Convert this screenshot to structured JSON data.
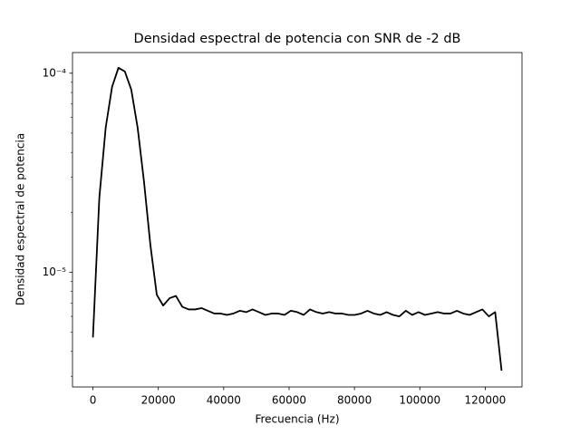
{
  "chart_data": {
    "type": "line",
    "title": "Densidad espectral de potencia con SNR de -2 dB",
    "xlabel": "Frecuencia (Hz)",
    "ylabel": "Densidad espectral de potencia",
    "yscale": "log",
    "color": "#000000",
    "xlim": [
      -6250,
      131250
    ],
    "xticks": [
      0,
      20000,
      40000,
      60000,
      80000,
      100000,
      120000
    ],
    "ylim": [
      2.65e-06,
      0.000127
    ],
    "yticks": [
      {
        "value": 1e-05,
        "label": "10⁻⁵"
      },
      {
        "value": 0.0001,
        "label": "10⁻⁴"
      }
    ],
    "x": [
      0,
      1953.125,
      3906.25,
      5859.375,
      7812.5,
      9765.625,
      11718.75,
      13671.875,
      15625,
      17578.125,
      19531.25,
      21484.375,
      23437.5,
      25390.625,
      27343.75,
      29296.875,
      31250,
      33203.125,
      35156.25,
      37109.375,
      39062.5,
      41015.625,
      42968.75,
      44921.875,
      46875,
      48828.125,
      50781.25,
      52734.375,
      54687.5,
      56640.625,
      58593.75,
      60546.875,
      62500,
      64453.125,
      66406.25,
      68359.375,
      70312.5,
      72265.625,
      74218.75,
      76171.875,
      78125,
      80078.125,
      82031.25,
      83984.375,
      85937.5,
      87890.625,
      89843.75,
      91796.875,
      93750,
      95703.125,
      97656.25,
      99609.375,
      101562.5,
      103515.625,
      105468.75,
      107421.875,
      109375,
      111328.125,
      113281.25,
      115234.375,
      117187.5,
      119140.625,
      121093.75,
      123046.875,
      125000
    ],
    "values": [
      4.7e-06,
      2.36e-05,
      5.33e-05,
      8.55e-05,
      0.0001065,
      0.000102,
      8.28e-05,
      5.33e-05,
      2.85e-05,
      1.37e-05,
      7.7e-06,
      6.8e-06,
      7.4e-06,
      7.6e-06,
      6.7e-06,
      6.5e-06,
      6.5e-06,
      6.6e-06,
      6.4e-06,
      6.2e-06,
      6.2e-06,
      6.1e-06,
      6.2e-06,
      6.4e-06,
      6.3e-06,
      6.5e-06,
      6.3e-06,
      6.1e-06,
      6.2e-06,
      6.2e-06,
      6.1e-06,
      6.4e-06,
      6.3e-06,
      6.1e-06,
      6.5e-06,
      6.3e-06,
      6.2e-06,
      6.3e-06,
      6.2e-06,
      6.2e-06,
      6.1e-06,
      6.1e-06,
      6.2e-06,
      6.4e-06,
      6.2e-06,
      6.1e-06,
      6.3e-06,
      6.1e-06,
      6e-06,
      6.4e-06,
      6.1e-06,
      6.3e-06,
      6.1e-06,
      6.2e-06,
      6.3e-06,
      6.2e-06,
      6.2e-06,
      6.4e-06,
      6.2e-06,
      6.1e-06,
      6.3e-06,
      6.5e-06,
      6e-06,
      6.3e-06,
      3.2e-06
    ]
  }
}
